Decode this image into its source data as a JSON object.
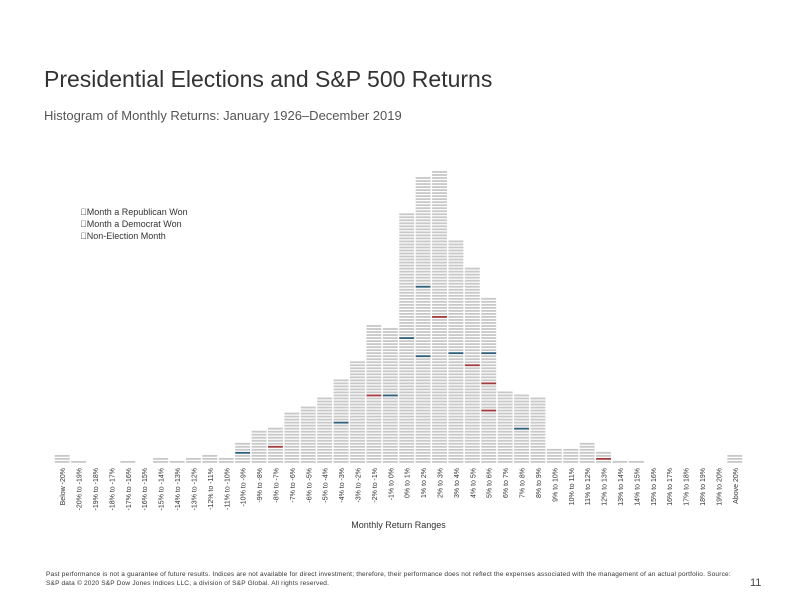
{
  "title": "Presidential Elections and S&P 500 Returns",
  "subtitle": "Histogram of Monthly Returns: January 1926–December 2019",
  "legend": {
    "republican": "\u0000Month a Republican Won",
    "democrat": "\u0000Month a Democrat Won",
    "nonelection": "\u0000Non-Election Month"
  },
  "footnote": "Past performance is not a guarantee of future results. Indices are not available for direct investment; therefore, their performance does not reflect the expenses associated with the management of an actual portfolio. Source: S&P data © 2020 S&P Dow Jones Indices LLC, a division of S&P Global. All rights reserved.",
  "page_number": "11",
  "colors": {
    "nonelection": "#c8c8c8",
    "republican": "#a23b3b",
    "democrat": "#2d5f7a",
    "text": "#333333"
  },
  "chart_data": {
    "type": "bar",
    "title": "Histogram of Monthly Returns: January 1926–December 2019",
    "xlabel": "Monthly Return Ranges",
    "ylabel": "",
    "ylim": [
      0,
      110
    ],
    "categories": [
      "Below -20%",
      "-20% to -19%",
      "-19% to -18%",
      "-18% to -17%",
      "-17% to -16%",
      "-16% to -15%",
      "-15% to -14%",
      "-14% to -13%",
      "-13% to -12%",
      "-12% to -11%",
      "-11% to -10%",
      "-10% to -9%",
      "-9% to -8%",
      "-8% to -7%",
      "-7% to -6%",
      "-6% to -5%",
      "-5% to -4%",
      "-4% to -3%",
      "-3% to -2%",
      "-2% to -1%",
      "-1% to 0%",
      "0% to 1%",
      "1% to 2%",
      "2% to 3%",
      "3% to 4%",
      "4% to 5%",
      "5% to 6%",
      "6% to 7%",
      "7% to 8%",
      "8% to 9%",
      "9% to 10%",
      "10% to 11%",
      "11% to 12%",
      "12% to 13%",
      "13% to 14%",
      "14% to 15%",
      "15% to 16%",
      "16% to 17%",
      "17% to 18%",
      "18% to 19%",
      "19% to 20%",
      "Above 20%"
    ],
    "series": [
      {
        "name": "Non-Election Month",
        "values": [
          3,
          1,
          0,
          0,
          1,
          0,
          2,
          1,
          2,
          3,
          2,
          6,
          11,
          11,
          17,
          19,
          22,
          27,
          34,
          45,
          44,
          82,
          93,
          96,
          73,
          64,
          52,
          24,
          22,
          22,
          5,
          5,
          7,
          3,
          1,
          1,
          0,
          0,
          0,
          0,
          0,
          3
        ]
      },
      {
        "name": "Month a Republican Won",
        "values": [
          0,
          0,
          0,
          0,
          0,
          0,
          0,
          0,
          0,
          0,
          0,
          0,
          0,
          1,
          0,
          0,
          0,
          0,
          0,
          1,
          0,
          0,
          0,
          1,
          0,
          1,
          2,
          0,
          0,
          0,
          0,
          0,
          0,
          1,
          0,
          0,
          0,
          0,
          0,
          0,
          0,
          0
        ]
      },
      {
        "name": "Month a Democrat Won",
        "values": [
          0,
          0,
          0,
          0,
          0,
          0,
          0,
          0,
          0,
          0,
          0,
          1,
          0,
          0,
          0,
          0,
          0,
          1,
          0,
          0,
          1,
          1,
          2,
          0,
          1,
          0,
          1,
          0,
          1,
          0,
          0,
          0,
          0,
          0,
          0,
          0,
          0,
          0,
          0,
          0,
          0,
          0
        ]
      }
    ]
  }
}
